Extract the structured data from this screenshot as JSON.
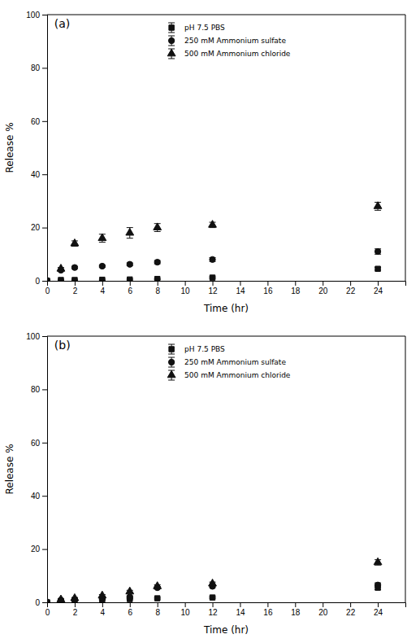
{
  "chart_data": [
    {
      "type": "scatter",
      "title": "(a)",
      "xlabel": "Time (hr)",
      "ylabel": "Release %",
      "xlim": [
        0,
        26
      ],
      "ylim": [
        0,
        100
      ],
      "xticks": [
        0,
        2,
        4,
        6,
        8,
        10,
        12,
        14,
        16,
        18,
        20,
        22,
        24
      ],
      "yticks": [
        0,
        20,
        40,
        60,
        80,
        100
      ],
      "grid": false,
      "legend": "top",
      "series": [
        {
          "name": "pH 7.5 PBS",
          "color": "#111111",
          "marker": "square",
          "x": [
            0,
            1,
            2,
            4,
            6,
            8,
            12,
            24
          ],
          "values": [
            0,
            0.3,
            0.3,
            0.4,
            0.5,
            0.7,
            1.2,
            4.5
          ],
          "yerr": [
            0,
            0.2,
            0.2,
            0.2,
            0.2,
            0.2,
            0.3,
            0.5
          ]
        },
        {
          "name": "250 mM Ammonium sulfate",
          "color": "#111111",
          "marker": "circle",
          "x": [
            0,
            1,
            2,
            4,
            6,
            8,
            12,
            24
          ],
          "values": [
            0,
            4.0,
            5.0,
            5.5,
            6.2,
            7.0,
            8.0,
            11.0
          ],
          "yerr": [
            0,
            0.3,
            0.4,
            0.4,
            0.5,
            0.6,
            0.7,
            1.0
          ]
        },
        {
          "name": "500 mM Ammonium chloride",
          "color": "#111111",
          "marker": "triangle",
          "x": [
            0,
            1,
            2,
            4,
            6,
            8,
            12,
            24
          ],
          "values": [
            0,
            4.5,
            14.0,
            16.0,
            18.0,
            20.0,
            21.0,
            28.0
          ],
          "yerr": [
            0,
            0.5,
            1.0,
            1.5,
            2.0,
            1.5,
            1.0,
            1.5
          ]
        }
      ]
    },
    {
      "type": "scatter",
      "title": "(b)",
      "xlabel": "Time (hr)",
      "ylabel": "Release %",
      "xlim": [
        0,
        26
      ],
      "ylim": [
        0,
        100
      ],
      "xticks": [
        0,
        2,
        4,
        6,
        8,
        10,
        12,
        14,
        16,
        18,
        20,
        22,
        24
      ],
      "yticks": [
        0,
        20,
        40,
        60,
        80,
        100
      ],
      "grid": false,
      "legend": "top",
      "series": [
        {
          "name": "pH 7.5 PBS",
          "color": "#111111",
          "marker": "square",
          "x": [
            0,
            1,
            2,
            4,
            6,
            8,
            12,
            24
          ],
          "values": [
            0,
            0.5,
            0.8,
            1.0,
            1.2,
            1.5,
            1.8,
            5.5
          ],
          "yerr": [
            0,
            0.2,
            0.2,
            0.2,
            0.2,
            0.3,
            0.3,
            0.8
          ]
        },
        {
          "name": "250 mM Ammonium sulfate",
          "color": "#111111",
          "marker": "circle",
          "x": [
            0,
            1,
            2,
            4,
            6,
            8,
            12,
            24
          ],
          "values": [
            0,
            0.8,
            1.0,
            1.5,
            2.0,
            5.5,
            6.0,
            6.5
          ],
          "yerr": [
            0,
            0.2,
            0.2,
            0.3,
            0.4,
            0.5,
            0.5,
            0.8
          ]
        },
        {
          "name": "500 mM Ammonium chloride",
          "color": "#111111",
          "marker": "triangle",
          "x": [
            0,
            1,
            2,
            4,
            6,
            8,
            12,
            24
          ],
          "values": [
            0,
            1.0,
            1.5,
            2.5,
            4.0,
            6.0,
            7.0,
            15.0
          ],
          "yerr": [
            0,
            0.2,
            0.3,
            0.4,
            0.5,
            0.6,
            0.6,
            1.0
          ]
        }
      ]
    }
  ]
}
